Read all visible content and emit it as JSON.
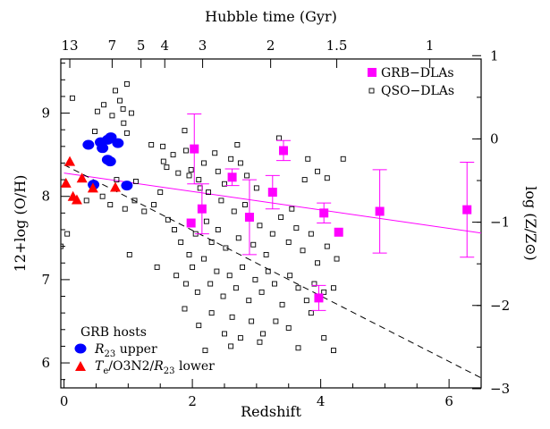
{
  "chart_data": {
    "type": "scatter",
    "title": "",
    "xlabel": "Redshift",
    "ylabel": "12+log (O/H)",
    "top_xlabel": "Hubble time (Gyr)",
    "right_ylabel": "log (Z/Z⊙)",
    "xlim": [
      -0.05,
      6.5
    ],
    "ylim": [
      5.7,
      9.65
    ],
    "x_ticks": [
      0,
      2,
      4,
      6
    ],
    "x_tick_labels": [
      "0",
      "2",
      "4",
      "6"
    ],
    "y_ticks": [
      6,
      7,
      8,
      9
    ],
    "y_tick_labels": [
      "6",
      "7",
      "8",
      "9"
    ],
    "top_ticks": [
      {
        "z": 0.09,
        "label": "13"
      },
      {
        "z": 0.75,
        "label": "7"
      },
      {
        "z": 1.2,
        "label": "5"
      },
      {
        "z": 1.57,
        "label": "4"
      },
      {
        "z": 2.16,
        "label": "3"
      },
      {
        "z": 3.22,
        "label": "2"
      },
      {
        "z": 4.25,
        "label": "1.5"
      },
      {
        "z": 5.7,
        "label": "1"
      }
    ],
    "right_ticks": [
      {
        "logz": 1,
        "label": "1"
      },
      {
        "logz": 0,
        "label": "0"
      },
      {
        "logz": -1,
        "label": "−1"
      },
      {
        "logz": -2,
        "label": "−2"
      },
      {
        "logz": -3,
        "label": "−3"
      }
    ],
    "solar_offset": 8.69,
    "grid": false,
    "legend_top_right": [
      "GRB−DLAs",
      "QSO−DLAs"
    ],
    "legend_bottom_left": {
      "title": "GRB hosts",
      "items": [
        "upper",
        "lower"
      ]
    },
    "colors": {
      "grb_dla": "#ff00ff",
      "upper": "#0000ff",
      "lower": "#ff0000",
      "qso": "#000000"
    },
    "grb_dlas": [
      {
        "x": 2.03,
        "y": 8.57,
        "lo": 0.42,
        "hi": 0.42
      },
      {
        "x": 1.98,
        "y": 7.68,
        "lo": 0.0,
        "hi": 0.0
      },
      {
        "x": 2.15,
        "y": 7.85,
        "lo": 0.3,
        "hi": 0.3
      },
      {
        "x": 2.62,
        "y": 8.23,
        "lo": 0.1,
        "hi": 0.1
      },
      {
        "x": 2.89,
        "y": 7.75,
        "lo": 0.45,
        "hi": 0.45
      },
      {
        "x": 3.25,
        "y": 8.05,
        "lo": 0.2,
        "hi": 0.2
      },
      {
        "x": 3.42,
        "y": 8.55,
        "lo": 0.12,
        "hi": 0.12
      },
      {
        "x": 3.97,
        "y": 6.78,
        "lo": 0.15,
        "hi": 0.15
      },
      {
        "x": 4.05,
        "y": 7.8,
        "lo": 0.12,
        "hi": 0.12
      },
      {
        "x": 4.28,
        "y": 7.57,
        "lo": 0.0,
        "hi": 0.0
      },
      {
        "x": 4.92,
        "y": 7.82,
        "lo": 0.5,
        "hi": 0.5
      },
      {
        "x": 6.28,
        "y": 7.84,
        "lo": 0.57,
        "hi": 0.57
      }
    ],
    "grb_hosts_upper": [
      {
        "x": 0.38,
        "y": 8.62
      },
      {
        "x": 0.57,
        "y": 8.65
      },
      {
        "x": 0.6,
        "y": 8.58
      },
      {
        "x": 0.68,
        "y": 8.68
      },
      {
        "x": 0.73,
        "y": 8.71
      },
      {
        "x": 0.84,
        "y": 8.64
      },
      {
        "x": 0.68,
        "y": 8.44
      },
      {
        "x": 0.72,
        "y": 8.42
      },
      {
        "x": 0.46,
        "y": 8.14
      },
      {
        "x": 0.98,
        "y": 8.13
      }
    ],
    "grb_hosts_lower": [
      {
        "x": 0.09,
        "y": 8.42
      },
      {
        "x": 0.03,
        "y": 8.16
      },
      {
        "x": 0.28,
        "y": 8.22
      },
      {
        "x": 0.14,
        "y": 8.0
      },
      {
        "x": 0.2,
        "y": 7.96
      },
      {
        "x": 0.45,
        "y": 8.1
      },
      {
        "x": 0.8,
        "y": 8.11
      }
    ],
    "qso_dlas": [
      {
        "x": 0.13,
        "y": 9.18
      },
      {
        "x": 0.52,
        "y": 9.02
      },
      {
        "x": 0.62,
        "y": 9.1
      },
      {
        "x": 0.75,
        "y": 8.97
      },
      {
        "x": 0.8,
        "y": 9.27
      },
      {
        "x": 0.87,
        "y": 9.15
      },
      {
        "x": 0.92,
        "y": 9.05
      },
      {
        "x": 0.98,
        "y": 9.35
      },
      {
        "x": 1.05,
        "y": 9.0
      },
      {
        "x": 0.93,
        "y": 8.88
      },
      {
        "x": 0.48,
        "y": 8.78
      },
      {
        "x": 0.98,
        "y": 8.76
      },
      {
        "x": 1.36,
        "y": 8.62
      },
      {
        "x": 1.54,
        "y": 8.6
      },
      {
        "x": 1.7,
        "y": 8.5
      },
      {
        "x": 1.55,
        "y": 8.42
      },
      {
        "x": 1.78,
        "y": 8.28
      },
      {
        "x": 1.88,
        "y": 8.79
      },
      {
        "x": 1.9,
        "y": 8.55
      },
      {
        "x": 1.95,
        "y": 8.25
      },
      {
        "x": 1.98,
        "y": 8.32
      },
      {
        "x": 2.1,
        "y": 8.2
      },
      {
        "x": 2.12,
        "y": 8.1
      },
      {
        "x": 2.18,
        "y": 8.4
      },
      {
        "x": 2.25,
        "y": 8.05
      },
      {
        "x": 2.35,
        "y": 8.52
      },
      {
        "x": 2.4,
        "y": 8.3
      },
      {
        "x": 2.5,
        "y": 8.15
      },
      {
        "x": 2.6,
        "y": 8.45
      },
      {
        "x": 2.75,
        "y": 8.4
      },
      {
        "x": 2.85,
        "y": 8.25
      },
      {
        "x": 3.0,
        "y": 8.1
      },
      {
        "x": 3.35,
        "y": 8.7
      },
      {
        "x": 3.75,
        "y": 8.2
      },
      {
        "x": 3.8,
        "y": 8.45
      },
      {
        "x": 3.95,
        "y": 8.3
      },
      {
        "x": 4.1,
        "y": 8.22
      },
      {
        "x": 4.35,
        "y": 8.45
      },
      {
        "x": 0.35,
        "y": 7.95
      },
      {
        "x": 0.6,
        "y": 8.0
      },
      {
        "x": 0.72,
        "y": 7.9
      },
      {
        "x": 0.95,
        "y": 7.85
      },
      {
        "x": 1.1,
        "y": 7.95
      },
      {
        "x": 1.25,
        "y": 7.82
      },
      {
        "x": 1.4,
        "y": 7.9
      },
      {
        "x": 1.62,
        "y": 7.72
      },
      {
        "x": 1.72,
        "y": 7.6
      },
      {
        "x": 1.82,
        "y": 7.45
      },
      {
        "x": 1.95,
        "y": 7.3
      },
      {
        "x": 2.05,
        "y": 7.55
      },
      {
        "x": 2.22,
        "y": 7.7
      },
      {
        "x": 2.3,
        "y": 7.45
      },
      {
        "x": 2.4,
        "y": 7.6
      },
      {
        "x": 2.52,
        "y": 7.38
      },
      {
        "x": 2.65,
        "y": 7.82
      },
      {
        "x": 2.72,
        "y": 7.5
      },
      {
        "x": 2.82,
        "y": 7.9
      },
      {
        "x": 2.95,
        "y": 7.42
      },
      {
        "x": 3.05,
        "y": 7.65
      },
      {
        "x": 3.15,
        "y": 7.3
      },
      {
        "x": 3.25,
        "y": 7.55
      },
      {
        "x": 3.38,
        "y": 7.75
      },
      {
        "x": 3.5,
        "y": 7.45
      },
      {
        "x": 3.62,
        "y": 7.62
      },
      {
        "x": 3.72,
        "y": 7.35
      },
      {
        "x": 3.85,
        "y": 7.55
      },
      {
        "x": 3.95,
        "y": 7.2
      },
      {
        "x": 4.1,
        "y": 7.4
      },
      {
        "x": 4.25,
        "y": 7.25
      },
      {
        "x": -0.05,
        "y": 7.4
      },
      {
        "x": 0.05,
        "y": 7.55
      },
      {
        "x": 1.02,
        "y": 7.3
      },
      {
        "x": 1.45,
        "y": 7.15
      },
      {
        "x": 1.75,
        "y": 7.05
      },
      {
        "x": 1.9,
        "y": 6.95
      },
      {
        "x": 2.0,
        "y": 7.15
      },
      {
        "x": 2.08,
        "y": 6.85
      },
      {
        "x": 2.18,
        "y": 7.25
      },
      {
        "x": 2.28,
        "y": 6.95
      },
      {
        "x": 2.38,
        "y": 7.1
      },
      {
        "x": 2.48,
        "y": 6.8
      },
      {
        "x": 2.58,
        "y": 7.05
      },
      {
        "x": 2.68,
        "y": 6.9
      },
      {
        "x": 2.78,
        "y": 7.15
      },
      {
        "x": 2.88,
        "y": 6.75
      },
      {
        "x": 2.98,
        "y": 7.0
      },
      {
        "x": 3.08,
        "y": 6.85
      },
      {
        "x": 3.18,
        "y": 7.1
      },
      {
        "x": 3.28,
        "y": 6.95
      },
      {
        "x": 3.4,
        "y": 6.7
      },
      {
        "x": 3.52,
        "y": 7.05
      },
      {
        "x": 3.65,
        "y": 6.9
      },
      {
        "x": 3.78,
        "y": 6.75
      },
      {
        "x": 3.9,
        "y": 6.95
      },
      {
        "x": 4.05,
        "y": 6.85
      },
      {
        "x": 4.2,
        "y": 6.9
      },
      {
        "x": 1.88,
        "y": 6.65
      },
      {
        "x": 2.1,
        "y": 6.45
      },
      {
        "x": 2.3,
        "y": 6.6
      },
      {
        "x": 2.5,
        "y": 6.35
      },
      {
        "x": 2.62,
        "y": 6.55
      },
      {
        "x": 2.75,
        "y": 6.3
      },
      {
        "x": 2.92,
        "y": 6.5
      },
      {
        "x": 3.1,
        "y": 6.35
      },
      {
        "x": 3.3,
        "y": 6.5
      },
      {
        "x": 3.5,
        "y": 6.42
      },
      {
        "x": 3.65,
        "y": 6.18
      },
      {
        "x": 3.85,
        "y": 6.6
      },
      {
        "x": 4.05,
        "y": 6.3
      },
      {
        "x": 4.2,
        "y": 6.15
      },
      {
        "x": 2.2,
        "y": 6.15
      },
      {
        "x": 2.6,
        "y": 6.2
      },
      {
        "x": 3.05,
        "y": 6.25
      },
      {
        "x": 0.82,
        "y": 8.2
      },
      {
        "x": 1.12,
        "y": 8.18
      },
      {
        "x": 2.45,
        "y": 7.95
      },
      {
        "x": 3.55,
        "y": 7.85
      },
      {
        "x": 1.5,
        "y": 8.05
      },
      {
        "x": 1.6,
        "y": 8.35
      },
      {
        "x": 2.7,
        "y": 8.62
      }
    ],
    "lines": [
      {
        "name": "grb-dla-fit",
        "style": "solid",
        "points": [
          [
            0,
            8.28
          ],
          [
            6.5,
            7.56
          ]
        ]
      },
      {
        "name": "qso-dla-fit",
        "style": "dashed",
        "points": [
          [
            0,
            8.38
          ],
          [
            6.5,
            5.82
          ]
        ]
      }
    ]
  }
}
